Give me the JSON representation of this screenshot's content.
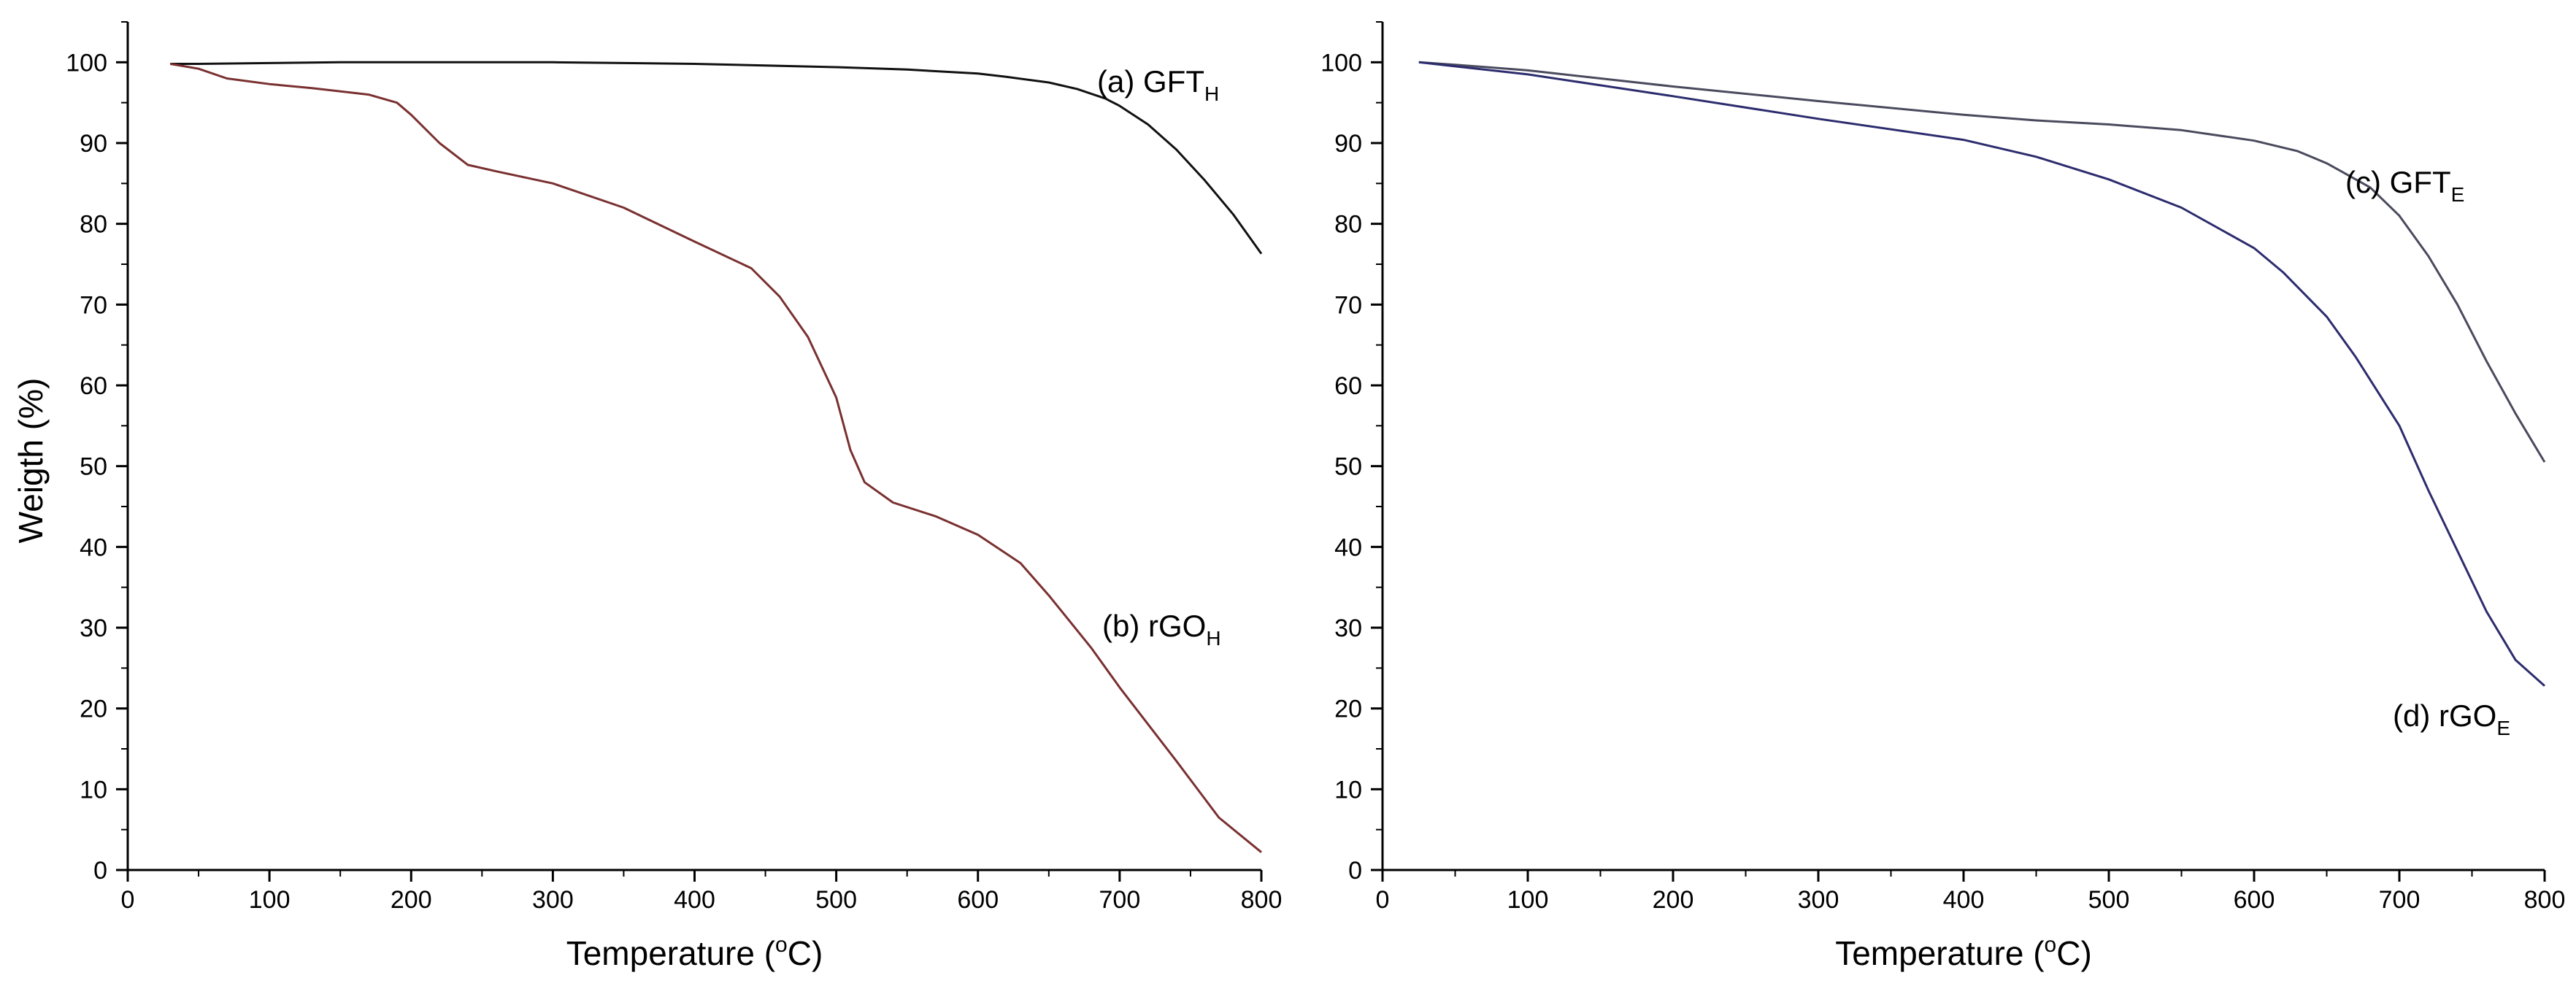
{
  "chart_data": [
    {
      "type": "line",
      "panel": "left",
      "xlabel": "Temperature (°C)",
      "xlabel_parts": [
        "Temperature (",
        "o",
        "C)"
      ],
      "ylabel": "Weigth (%)",
      "xlim": [
        0,
        800
      ],
      "ylim": [
        0,
        105
      ],
      "xticks": [
        "0",
        "100",
        "200",
        "300",
        "400",
        "500",
        "600",
        "700",
        "800"
      ],
      "yticks": [
        "0",
        "10",
        "20",
        "30",
        "40",
        "50",
        "60",
        "70",
        "80",
        "90",
        "100"
      ],
      "grid": false,
      "series": [
        {
          "name": "(a) GFT_H",
          "label_main": "(a) GFT",
          "label_sub": "H",
          "color": "#111111",
          "x": [
            30,
            50,
            100,
            150,
            200,
            250,
            300,
            350,
            400,
            450,
            500,
            550,
            600,
            620,
            650,
            670,
            690,
            700,
            720,
            740,
            760,
            780,
            800
          ],
          "y": [
            99.8,
            99.8,
            99.9,
            100.0,
            100.0,
            100.0,
            100.0,
            99.9,
            99.8,
            99.6,
            99.4,
            99.1,
            98.6,
            98.2,
            97.5,
            96.7,
            95.5,
            94.6,
            92.3,
            89.2,
            85.4,
            81.2,
            76.3
          ]
        },
        {
          "name": "(b) rGO_H",
          "label_main": "(b) rGO",
          "label_sub": "H",
          "color": "#7a3030",
          "x": [
            30,
            50,
            70,
            100,
            130,
            170,
            190,
            200,
            220,
            240,
            260,
            300,
            350,
            400,
            440,
            460,
            480,
            500,
            510,
            520,
            540,
            570,
            600,
            630,
            650,
            680,
            700,
            740,
            770,
            800
          ],
          "y": [
            99.8,
            99.2,
            98.0,
            97.3,
            96.8,
            96.0,
            95.0,
            93.5,
            90.0,
            87.3,
            86.5,
            85.0,
            82.0,
            77.8,
            74.5,
            71.0,
            66.0,
            58.5,
            52.0,
            48.0,
            45.5,
            43.8,
            41.5,
            38.0,
            34.0,
            27.5,
            22.6,
            13.5,
            6.5,
            2.2
          ]
        }
      ]
    },
    {
      "type": "line",
      "panel": "right",
      "xlabel": "Temperature (°C)",
      "xlabel_parts": [
        "Temperature (",
        "o",
        "C)"
      ],
      "ylabel": "",
      "xlim": [
        0,
        800
      ],
      "ylim": [
        0,
        105
      ],
      "xticks": [
        "0",
        "100",
        "200",
        "300",
        "400",
        "500",
        "600",
        "700",
        "800"
      ],
      "yticks": [
        "0",
        "10",
        "20",
        "30",
        "40",
        "50",
        "60",
        "70",
        "80",
        "90",
        "100"
      ],
      "grid": false,
      "series": [
        {
          "name": "(c) GFT_E",
          "label_main": "(c) GFT",
          "label_sub": "E",
          "color": "#4a4a5e",
          "x": [
            25,
            50,
            100,
            200,
            300,
            400,
            450,
            500,
            550,
            600,
            630,
            650,
            680,
            700,
            720,
            740,
            760,
            780,
            800
          ],
          "y": [
            100.0,
            99.7,
            99.0,
            97.0,
            95.2,
            93.5,
            92.8,
            92.3,
            91.6,
            90.3,
            89.0,
            87.5,
            84.5,
            81.0,
            76.0,
            70.0,
            63.0,
            56.5,
            50.5
          ]
        },
        {
          "name": "(d) rGO_E",
          "label_main": "(d) rGO",
          "label_sub": "E",
          "color": "#2c2c6e",
          "x": [
            25,
            50,
            100,
            200,
            300,
            400,
            450,
            500,
            550,
            600,
            620,
            650,
            670,
            700,
            720,
            740,
            760,
            780,
            800
          ],
          "y": [
            100.0,
            99.5,
            98.5,
            95.8,
            93.0,
            90.4,
            88.3,
            85.5,
            82.0,
            77.0,
            74.0,
            68.5,
            63.5,
            55.0,
            47.0,
            39.5,
            32.0,
            26.0,
            22.8
          ]
        }
      ]
    }
  ]
}
